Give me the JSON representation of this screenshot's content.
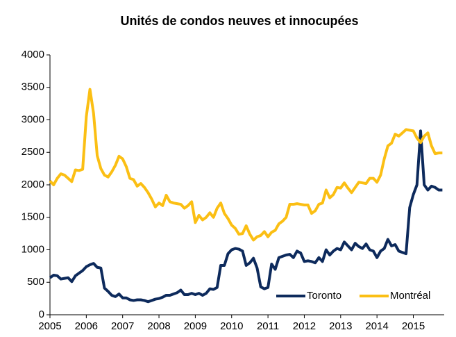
{
  "chart_data": {
    "type": "line",
    "title": "Unités de condos neuves et innocupées",
    "x": [
      2005,
      2005.1,
      2005.2,
      2005.3,
      2005.4,
      2005.5,
      2005.6,
      2005.7,
      2005.8,
      2005.9,
      2006,
      2006.1,
      2006.2,
      2006.3,
      2006.4,
      2006.5,
      2006.6,
      2006.7,
      2006.8,
      2006.9,
      2007,
      2007.1,
      2007.2,
      2007.3,
      2007.4,
      2007.5,
      2007.6,
      2007.7,
      2007.8,
      2007.9,
      2008,
      2008.1,
      2008.2,
      2008.3,
      2008.4,
      2008.5,
      2008.6,
      2008.7,
      2008.8,
      2008.9,
      2009,
      2009.1,
      2009.2,
      2009.3,
      2009.4,
      2009.5,
      2009.6,
      2009.7,
      2009.8,
      2009.9,
      2010,
      2010.1,
      2010.2,
      2010.3,
      2010.4,
      2010.5,
      2010.6,
      2010.7,
      2010.8,
      2010.9,
      2011,
      2011.1,
      2011.2,
      2011.3,
      2011.4,
      2011.5,
      2011.6,
      2011.7,
      2011.8,
      2011.9,
      2012,
      2012.1,
      2012.2,
      2012.3,
      2012.4,
      2012.5,
      2012.6,
      2012.7,
      2012.8,
      2012.9,
      2013,
      2013.1,
      2013.2,
      2013.3,
      2013.4,
      2013.5,
      2013.6,
      2013.7,
      2013.8,
      2013.9,
      2014,
      2014.1,
      2014.2,
      2014.3,
      2014.4,
      2014.5,
      2014.6,
      2014.7,
      2014.8,
      2014.9,
      2015,
      2015.1,
      2015.2,
      2015.3,
      2015.4,
      2015.5,
      2015.6,
      2015.7,
      2015.8
    ],
    "series": [
      {
        "name": "Toronto",
        "color": "#0d2a5c",
        "values": [
          570,
          610,
          600,
          550,
          560,
          570,
          510,
          600,
          640,
          680,
          740,
          770,
          790,
          730,
          720,
          410,
          360,
          300,
          280,
          320,
          260,
          260,
          230,
          220,
          230,
          230,
          220,
          200,
          220,
          240,
          250,
          270,
          300,
          300,
          320,
          340,
          380,
          310,
          310,
          330,
          310,
          330,
          300,
          330,
          400,
          390,
          420,
          760,
          760,
          940,
          1000,
          1020,
          1010,
          980,
          760,
          800,
          870,
          720,
          430,
          400,
          420,
          780,
          700,
          880,
          900,
          920,
          930,
          880,
          980,
          950,
          820,
          830,
          820,
          800,
          880,
          820,
          1000,
          920,
          980,
          1020,
          1000,
          1120,
          1060,
          1000,
          1100,
          1050,
          1020,
          1090,
          1000,
          980,
          880,
          980,
          1020,
          1160,
          1060,
          1080,
          980,
          960,
          940,
          1650,
          1850,
          2000,
          2830,
          2000,
          1920,
          1980,
          1960,
          1920,
          1920
        ]
      },
      {
        "name": "Montréal",
        "color": "#fbbf14",
        "values": [
          2060,
          2000,
          2100,
          2170,
          2150,
          2100,
          2050,
          2230,
          2220,
          2240,
          3050,
          3470,
          3100,
          2450,
          2250,
          2150,
          2120,
          2200,
          2300,
          2440,
          2400,
          2280,
          2100,
          2080,
          1980,
          2020,
          1960,
          1880,
          1780,
          1660,
          1720,
          1680,
          1840,
          1740,
          1720,
          1710,
          1700,
          1640,
          1680,
          1740,
          1420,
          1530,
          1460,
          1500,
          1570,
          1500,
          1640,
          1720,
          1560,
          1480,
          1380,
          1330,
          1240,
          1250,
          1370,
          1240,
          1150,
          1200,
          1220,
          1280,
          1200,
          1270,
          1300,
          1400,
          1440,
          1500,
          1700,
          1700,
          1710,
          1700,
          1690,
          1690,
          1560,
          1600,
          1700,
          1720,
          1920,
          1800,
          1850,
          1960,
          1950,
          2030,
          1950,
          1880,
          1960,
          2040,
          2030,
          2020,
          2100,
          2100,
          2040,
          2150,
          2400,
          2600,
          2640,
          2780,
          2750,
          2800,
          2850,
          2840,
          2830,
          2720,
          2650,
          2750,
          2800,
          2600,
          2480,
          2490,
          2490
        ]
      }
    ],
    "xlim": [
      2005,
      2015.85
    ],
    "xticks": [
      2005,
      2006,
      2007,
      2008,
      2009,
      2010,
      2011,
      2012,
      2013,
      2014,
      2015
    ],
    "ylim": [
      0,
      4000
    ],
    "yticks": [
      0,
      500,
      1000,
      1500,
      2000,
      2500,
      3000,
      3500,
      4000
    ],
    "grid": false,
    "legend": "lower right"
  }
}
